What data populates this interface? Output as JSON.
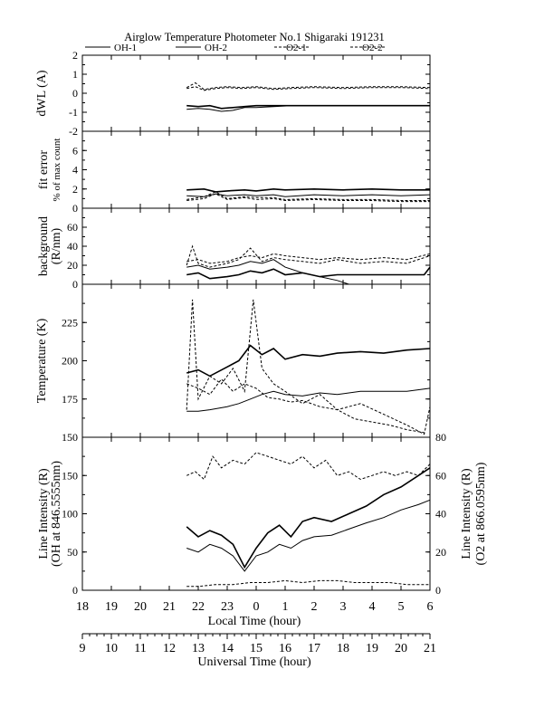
{
  "figure": {
    "title": "Airglow Temperature Photometer No.1  Shigaraki   191231",
    "legend": [
      {
        "name": "OH-1",
        "dash": ""
      },
      {
        "name": "OH-2",
        "dash": ""
      },
      {
        "name": "O2-1",
        "dash": "3,2"
      },
      {
        "name": "O2-2",
        "dash": "3,2"
      }
    ],
    "x_label_local": "Local Time (hour)",
    "x_label_ut": "Universal Time (hour)",
    "local_ticks": [
      "18",
      "19",
      "20",
      "21",
      "22",
      "23",
      "0",
      "1",
      "2",
      "3",
      "4",
      "5",
      "6"
    ],
    "ut_ticks": [
      "9",
      "10",
      "11",
      "12",
      "13",
      "14",
      "15",
      "16",
      "17",
      "18",
      "19",
      "20",
      "21"
    ],
    "colors": {
      "lines": "#000000",
      "background": "#ffffff"
    }
  },
  "chart_data": [
    {
      "type": "line",
      "panel": "dwl",
      "ylabel": "dWL (A)",
      "ylim": [
        -2,
        2
      ],
      "yticks": [
        "2",
        "1",
        "0",
        "-1",
        "-2"
      ],
      "x_range_local_hours": [
        18,
        30
      ],
      "series": [
        {
          "name": "OH-1",
          "x": [
            21.6,
            22,
            22.4,
            22.8,
            23.2,
            23.6,
            24,
            24.6,
            25.2,
            26,
            27,
            28,
            29,
            30
          ],
          "values": [
            -0.65,
            -0.7,
            -0.65,
            -0.8,
            -0.75,
            -0.7,
            -0.65,
            -0.65,
            -0.65,
            -0.65,
            -0.65,
            -0.65,
            -0.65,
            -0.65
          ]
        },
        {
          "name": "OH-2",
          "x": [
            21.6,
            22,
            22.4,
            22.8,
            23.2,
            23.6,
            24,
            24.6,
            25.2,
            26,
            27,
            28,
            29,
            30
          ],
          "values": [
            -0.85,
            -0.8,
            -0.85,
            -0.95,
            -0.9,
            -0.75,
            -0.75,
            -0.7,
            -0.65,
            -0.65,
            -0.65,
            -0.65,
            -0.65,
            -0.65
          ]
        },
        {
          "name": "O2-1",
          "x": [
            21.6,
            21.9,
            22.2,
            22.6,
            23,
            23.5,
            24,
            24.6,
            25.2,
            26,
            27,
            28,
            29,
            30
          ],
          "values": [
            0.25,
            0.35,
            0.15,
            0.25,
            0.3,
            0.25,
            0.3,
            0.2,
            0.25,
            0.3,
            0.25,
            0.3,
            0.3,
            0.25
          ]
        },
        {
          "name": "O2-2",
          "x": [
            21.6,
            21.9,
            22.2,
            22.6,
            23,
            23.5,
            24,
            24.6,
            25.2,
            26,
            27,
            28,
            29,
            30
          ],
          "values": [
            0.3,
            0.55,
            0.2,
            0.3,
            0.35,
            0.3,
            0.35,
            0.25,
            0.3,
            0.35,
            0.3,
            0.35,
            0.35,
            0.3
          ]
        }
      ]
    },
    {
      "type": "line",
      "panel": "fit_error",
      "ylabel": "fit error",
      "ylabel2": "% of max count",
      "ylim": [
        0,
        8
      ],
      "yticks": [
        "6",
        "4",
        "2",
        "0"
      ],
      "x_range_local_hours": [
        18,
        30
      ],
      "series": [
        {
          "name": "OH-1",
          "x": [
            21.6,
            22.2,
            22.6,
            23,
            23.6,
            24,
            24.6,
            25,
            26,
            27,
            28,
            29,
            30
          ],
          "values": [
            1.9,
            2.0,
            1.7,
            1.8,
            1.9,
            1.8,
            2.0,
            1.9,
            2.0,
            1.9,
            2.0,
            1.9,
            1.9
          ]
        },
        {
          "name": "OH-2",
          "x": [
            21.6,
            22.2,
            22.6,
            23,
            23.6,
            24,
            24.6,
            25,
            26,
            27,
            28,
            29,
            30
          ],
          "values": [
            1.3,
            1.2,
            1.5,
            1.3,
            1.4,
            1.3,
            1.4,
            1.2,
            1.4,
            1.3,
            1.4,
            1.3,
            1.4
          ]
        },
        {
          "name": "O2-1",
          "x": [
            21.6,
            22.2,
            22.6,
            23,
            23.6,
            24,
            24.6,
            25,
            26,
            27,
            28,
            29,
            30
          ],
          "values": [
            0.8,
            1.0,
            1.5,
            0.9,
            1.1,
            0.9,
            1.0,
            0.8,
            0.9,
            0.8,
            0.8,
            0.7,
            0.7
          ]
        },
        {
          "name": "O2-2",
          "x": [
            21.6,
            22.2,
            22.6,
            23,
            23.6,
            24,
            24.6,
            25,
            26,
            27,
            28,
            29,
            30
          ],
          "values": [
            0.9,
            1.2,
            1.7,
            1.0,
            1.2,
            1.1,
            1.1,
            0.9,
            1.0,
            0.9,
            0.9,
            0.8,
            0.8
          ]
        }
      ]
    },
    {
      "type": "line",
      "panel": "background",
      "ylabel": "background",
      "ylabel2": "(R/nm)",
      "ylim": [
        0,
        80
      ],
      "yticks": [
        "60",
        "40",
        "20",
        "0"
      ],
      "x_range_local_hours": [
        18,
        30
      ],
      "series": [
        {
          "name": "OH-1",
          "x": [
            21.6,
            22,
            22.4,
            23,
            23.4,
            23.8,
            24.2,
            24.6,
            25,
            25.6,
            26.2,
            26.8,
            27.6,
            28.4,
            29.2,
            29.8,
            30
          ],
          "values": [
            10,
            12,
            6,
            8,
            10,
            14,
            12,
            16,
            10,
            12,
            8,
            10,
            10,
            10,
            10,
            10,
            18
          ]
        },
        {
          "name": "OH-2",
          "x": [
            21.6,
            22,
            22.4,
            23,
            23.4,
            23.8,
            24.2,
            24.6,
            25,
            25.6,
            26.2,
            26.8,
            27.2
          ],
          "values": [
            18,
            20,
            16,
            18,
            20,
            24,
            22,
            26,
            18,
            12,
            8,
            4,
            0
          ]
        },
        {
          "name": "O2-1",
          "x": [
            21.6,
            21.8,
            22,
            22.4,
            23,
            23.4,
            23.8,
            24.2,
            24.6,
            25,
            25.6,
            26.2,
            26.8,
            27.6,
            28.4,
            29.2,
            30
          ],
          "values": [
            20,
            40,
            22,
            18,
            22,
            26,
            38,
            24,
            28,
            26,
            24,
            22,
            26,
            22,
            24,
            22,
            30
          ]
        },
        {
          "name": "O2-2",
          "x": [
            21.6,
            22,
            22.4,
            23,
            23.4,
            23.8,
            24.2,
            24.6,
            25,
            25.6,
            26.2,
            26.8,
            27.6,
            28.4,
            29.2,
            30
          ],
          "values": [
            24,
            26,
            22,
            24,
            28,
            30,
            28,
            32,
            30,
            28,
            26,
            28,
            26,
            28,
            26,
            32
          ]
        }
      ]
    },
    {
      "type": "line",
      "panel": "temperature",
      "ylabel": "Temperature (K)",
      "ylim": [
        150,
        250
      ],
      "yticks": [
        "225",
        "200",
        "175",
        "150"
      ],
      "x_range_local_hours": [
        18,
        30
      ],
      "series": [
        {
          "name": "OH-1",
          "x": [
            21.6,
            22,
            22.4,
            23,
            23.4,
            23.8,
            24.2,
            24.6,
            25,
            25.6,
            26.2,
            26.8,
            27.6,
            28.4,
            29.2,
            30
          ],
          "values": [
            192,
            194,
            190,
            196,
            200,
            210,
            204,
            208,
            201,
            204,
            203,
            205,
            206,
            205,
            207,
            208
          ]
        },
        {
          "name": "OH-2",
          "x": [
            21.6,
            22,
            22.4,
            23,
            23.4,
            23.8,
            24.2,
            24.6,
            25,
            25.6,
            26.2,
            26.8,
            27.6,
            28.4,
            29.2,
            30
          ],
          "values": [
            167,
            167,
            168,
            170,
            172,
            175,
            178,
            180,
            178,
            177,
            179,
            178,
            180,
            180,
            180,
            182
          ]
        },
        {
          "name": "O2-1",
          "x": [
            21.6,
            21.8,
            22,
            22.4,
            22.8,
            23.2,
            23.6,
            23.9,
            24.2,
            24.6,
            25,
            25.6,
            26.2,
            26.8,
            27.6,
            28.4,
            29.2,
            29.8,
            30
          ],
          "values": [
            168,
            240,
            175,
            190,
            185,
            195,
            180,
            240,
            195,
            185,
            180,
            172,
            178,
            168,
            172,
            165,
            158,
            152,
            170
          ]
        },
        {
          "name": "O2-2",
          "x": [
            21.6,
            22,
            22.4,
            22.8,
            23.2,
            23.6,
            24,
            24.4,
            24.8,
            25.2,
            25.6,
            26.2,
            26.8,
            27.4,
            28,
            28.6,
            29.2,
            29.8
          ],
          "values": [
            185,
            182,
            178,
            188,
            180,
            185,
            182,
            176,
            175,
            173,
            174,
            170,
            168,
            162,
            160,
            158,
            155,
            153
          ]
        }
      ]
    },
    {
      "type": "line",
      "panel": "line_intensity",
      "ylabel": "Line Intensity (R)",
      "ylabel2": "(OH at 846.5555nm)",
      "ylim": [
        0,
        200
      ],
      "yticks": [
        "150",
        "100",
        "50",
        "0"
      ],
      "ylabel_right": "Line Intensity (R)",
      "ylabel_right2": "(O2 at 866.0595nm)",
      "ylim_right": [
        0,
        80
      ],
      "yticks_right": [
        "80",
        "60",
        "40",
        "20",
        "0"
      ],
      "x_range_local_hours": [
        18,
        30
      ],
      "series": [
        {
          "name": "OH-1",
          "axis": "left",
          "x": [
            21.6,
            22,
            22.4,
            22.8,
            23.2,
            23.6,
            24,
            24.4,
            24.8,
            25.2,
            25.6,
            26,
            26.6,
            27.2,
            27.8,
            28.4,
            29,
            29.6,
            30
          ],
          "values": [
            83,
            70,
            78,
            72,
            60,
            30,
            55,
            75,
            85,
            70,
            90,
            95,
            90,
            100,
            110,
            125,
            135,
            150,
            160
          ]
        },
        {
          "name": "OH-2",
          "axis": "left",
          "x": [
            21.6,
            22,
            22.4,
            22.8,
            23.2,
            23.6,
            24,
            24.4,
            24.8,
            25.2,
            25.6,
            26,
            26.6,
            27.2,
            27.8,
            28.4,
            29,
            29.6,
            30
          ],
          "values": [
            55,
            50,
            60,
            55,
            45,
            25,
            45,
            50,
            60,
            55,
            65,
            70,
            72,
            80,
            88,
            95,
            105,
            112,
            118
          ]
        },
        {
          "name": "O2-1",
          "axis": "right",
          "x": [
            21.6,
            21.9,
            22.2,
            22.5,
            22.8,
            23.2,
            23.6,
            24,
            24.4,
            24.8,
            25.2,
            25.6,
            26,
            26.4,
            26.8,
            27.2,
            27.6,
            28,
            28.4,
            28.8,
            29.2,
            29.6,
            30
          ],
          "values": [
            60,
            62,
            58,
            70,
            64,
            68,
            66,
            72,
            70,
            68,
            66,
            70,
            64,
            68,
            60,
            62,
            58,
            60,
            62,
            60,
            62,
            60,
            66
          ]
        },
        {
          "name": "O2-2",
          "axis": "right",
          "x": [
            21.6,
            22,
            22.6,
            23.2,
            23.8,
            24.4,
            25,
            25.6,
            26.2,
            26.8,
            27.4,
            28,
            28.6,
            29.2,
            29.8,
            30
          ],
          "values": [
            2,
            2,
            3,
            3,
            4,
            4,
            5,
            4,
            5,
            5,
            4,
            4,
            4,
            3,
            3,
            3
          ]
        }
      ]
    }
  ]
}
